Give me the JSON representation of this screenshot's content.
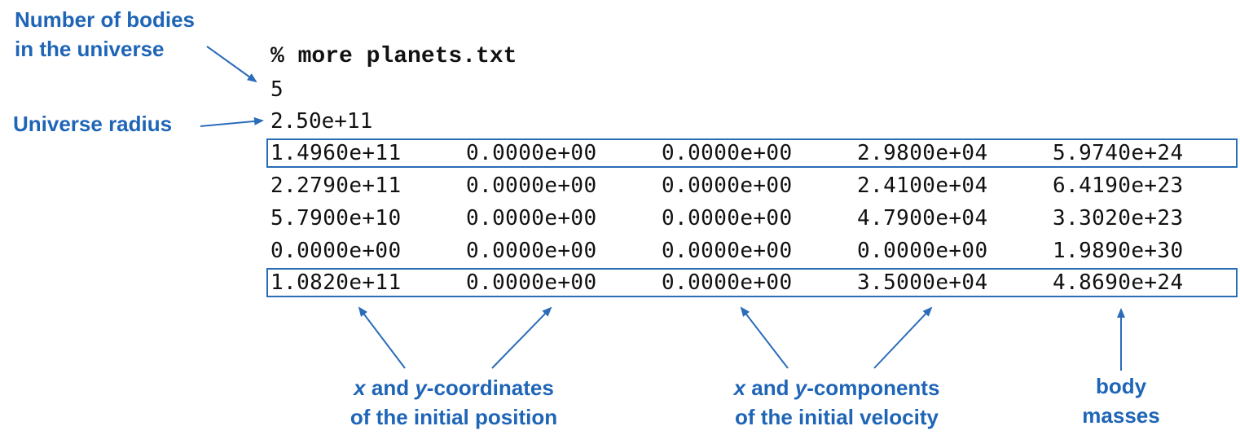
{
  "annotations": {
    "num_bodies_line1": "Number of bodies",
    "num_bodies_line2": "in the universe",
    "radius": "Universe radius",
    "position_var_x": "x",
    "position_and": " and ",
    "position_var_y": "y",
    "position_rest": "-coordinates",
    "position_line2": "of the initial position",
    "velocity_var_x": "x",
    "velocity_and": " and ",
    "velocity_var_y": "y",
    "velocity_rest": "-components",
    "velocity_line2": "of the initial velocity",
    "mass_line1": "body",
    "mass_line2": "masses"
  },
  "terminal": {
    "command": "% more planets.txt",
    "num_bodies": "5",
    "radius": "2.50e+11",
    "rows": [
      [
        "1.4960e+11",
        "0.0000e+00",
        "0.0000e+00",
        "2.9800e+04",
        "5.9740e+24"
      ],
      [
        "2.2790e+11",
        "0.0000e+00",
        "0.0000e+00",
        "2.4100e+04",
        "6.4190e+23"
      ],
      [
        "5.7900e+10",
        "0.0000e+00",
        "0.0000e+00",
        "4.7900e+04",
        "3.3020e+23"
      ],
      [
        "0.0000e+00",
        "0.0000e+00",
        "0.0000e+00",
        "0.0000e+00",
        "1.9890e+30"
      ],
      [
        "1.0820e+11",
        "0.0000e+00",
        "0.0000e+00",
        "3.5000e+04",
        "4.8690e+24"
      ]
    ]
  },
  "colors": {
    "annotation": "#1f65b7",
    "box_border": "#2b6cb8",
    "text": "#111111"
  }
}
